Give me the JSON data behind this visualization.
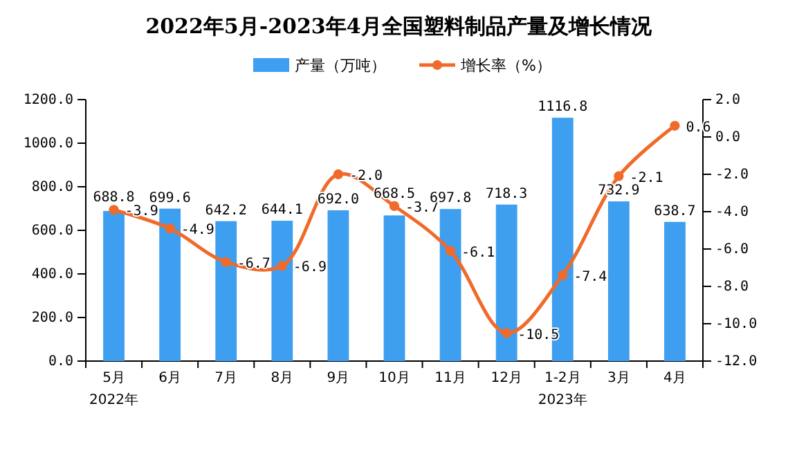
{
  "chart_data": {
    "type": "bar",
    "title": "2022年5月-2023年4月全国塑料制品产量及增长情况",
    "categories": [
      "5月",
      "6月",
      "7月",
      "8月",
      "9月",
      "10月",
      "11月",
      "12月",
      "1-2月",
      "3月",
      "4月"
    ],
    "series": [
      {
        "name": "产量（万吨）",
        "color": "#3e9ef0",
        "values": [
          688.8,
          699.6,
          642.2,
          644.1,
          692.0,
          668.5,
          697.8,
          718.3,
          1116.8,
          732.9,
          638.7
        ],
        "value_labels": [
          "688.8",
          "699.6",
          "642.2",
          "644.1",
          "692.0",
          "668.5",
          "697.8",
          "718.3",
          "1116.8",
          "732.9",
          "638.7"
        ]
      },
      {
        "name": "增长率（%）",
        "type": "line",
        "axis": "y2",
        "color": "#f06a2a",
        "values": [
          -3.9,
          -4.9,
          -6.7,
          -6.9,
          -2.0,
          -3.7,
          -6.1,
          -10.5,
          -7.4,
          -2.1,
          0.6
        ],
        "value_labels": [
          "-3.9",
          "-4.9",
          "-6.7",
          "-6.9",
          "-2.0",
          "-3.7",
          "-6.1",
          "-10.5",
          "-7.4",
          "-2.1",
          "0.6"
        ]
      }
    ],
    "ylim": [
      0,
      1200
    ],
    "yticks": [
      {
        "value": 0,
        "label": "0.0"
      },
      {
        "value": 200,
        "label": "200.0"
      },
      {
        "value": 400,
        "label": "400.0"
      },
      {
        "value": 600,
        "label": "600.0"
      },
      {
        "value": 800,
        "label": "800.0"
      },
      {
        "value": 1000,
        "label": "1000.0"
      },
      {
        "value": 1200,
        "label": "1200.0"
      }
    ],
    "y2lim": [
      -12,
      2
    ],
    "y2ticks": [
      {
        "value": -12,
        "label": "-12.0"
      },
      {
        "value": -10,
        "label": "-10.0"
      },
      {
        "value": -8,
        "label": "-8.0"
      },
      {
        "value": -6,
        "label": "-6.0"
      },
      {
        "value": -4,
        "label": "-4.0"
      },
      {
        "value": -2,
        "label": "-2.0"
      },
      {
        "value": 0,
        "label": "0.0"
      },
      {
        "value": 2,
        "label": "2.0"
      }
    ],
    "annotations": [
      "2022年",
      "2023年"
    ],
    "legend": "top",
    "marker": "circle",
    "grid": false
  }
}
